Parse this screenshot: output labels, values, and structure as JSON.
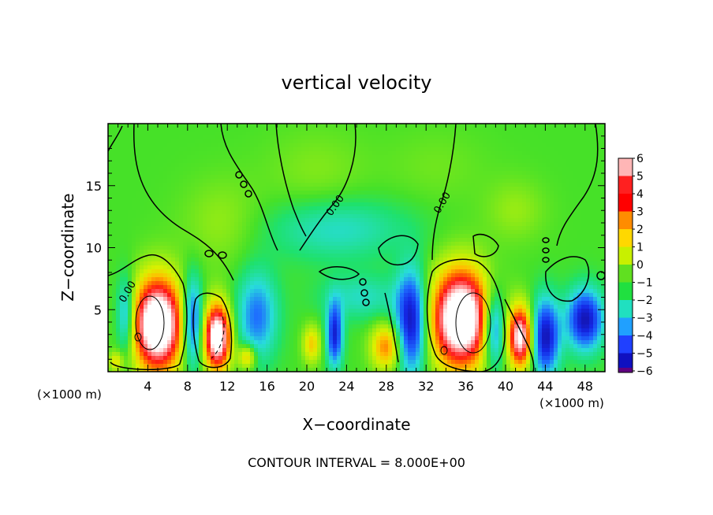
{
  "chart_data": {
    "type": "heatmap",
    "title": "vertical velocity",
    "xlabel": "X−coordinate",
    "ylabel": "Z−coordinate",
    "x_unit_label": "(×1000 m)",
    "xlim": [
      0,
      50
    ],
    "ylim": [
      0,
      20
    ],
    "x_ticks": [
      4,
      8,
      12,
      16,
      20,
      24,
      28,
      32,
      36,
      40,
      44,
      48
    ],
    "y_ticks": [
      5,
      10,
      15
    ],
    "contour_label": "0.00",
    "footer": "CONTOUR INTERVAL = 8.000E+00",
    "colorbar": {
      "range": [
        -6,
        6
      ],
      "levels": [
        6,
        5,
        4,
        3,
        2,
        1,
        0,
        -1,
        -2,
        -3,
        -4,
        -5,
        -6
      ],
      "level_labels": [
        "6",
        "5",
        "4",
        "3",
        "2",
        "1",
        "0",
        "−1",
        "−2",
        "−3",
        "−4",
        "−5",
        "−6"
      ],
      "colors": [
        "#ffb6b6",
        "#ff2020",
        "#ff0000",
        "#ff8c00",
        "#ffd800",
        "#c8f000",
        "#60e020",
        "#20e040",
        "#20e0c0",
        "#20a0ff",
        "#2040ff",
        "#1010c0",
        "#600080"
      ]
    },
    "features": [
      {
        "x": 5.0,
        "z": 3.8,
        "w": 9,
        "sx": 2.4,
        "sz": 3.6
      },
      {
        "x": 11.0,
        "z": 2.8,
        "w": 8,
        "sx": 1.3,
        "sz": 2.6
      },
      {
        "x": 35.5,
        "z": 4.3,
        "w": 9,
        "sx": 2.8,
        "sz": 3.8
      },
      {
        "x": 41.5,
        "z": 2.8,
        "w": 7,
        "sx": 1.2,
        "sz": 2.4
      },
      {
        "x": 28.0,
        "z": 2.0,
        "w": 3.5,
        "sx": 1.5,
        "sz": 1.8
      },
      {
        "x": 14.0,
        "z": 1.2,
        "w": 3,
        "sx": 0.9,
        "sz": 1.0
      },
      {
        "x": 20.5,
        "z": 2.2,
        "w": 2.5,
        "sx": 0.9,
        "sz": 1.5
      },
      {
        "x": 0.8,
        "z": 0.8,
        "w": 2,
        "sx": 0.7,
        "sz": 0.8
      },
      {
        "x": 8.5,
        "z": 4.0,
        "w": -4,
        "sx": 1.0,
        "sz": 3.5
      },
      {
        "x": 1.8,
        "z": 4.5,
        "w": -3,
        "sx": 0.9,
        "sz": 3.0
      },
      {
        "x": 15.0,
        "z": 4.5,
        "w": -3,
        "sx": 2.0,
        "sz": 3.5
      },
      {
        "x": 22.8,
        "z": 3.0,
        "w": -4.5,
        "sx": 0.8,
        "sz": 2.5
      },
      {
        "x": 30.5,
        "z": 4.0,
        "w": -5,
        "sx": 1.5,
        "sz": 4.0
      },
      {
        "x": 38.8,
        "z": 3.5,
        "w": -4,
        "sx": 1.1,
        "sz": 3.0
      },
      {
        "x": 44.0,
        "z": 2.8,
        "w": -5,
        "sx": 1.4,
        "sz": 3.0
      },
      {
        "x": 48.0,
        "z": 4.2,
        "w": -5,
        "sx": 1.8,
        "sz": 2.4
      },
      {
        "x": 25.5,
        "z": 6.0,
        "w": -1.5,
        "sx": 4.0,
        "sz": 1.8
      },
      {
        "x": 23.0,
        "z": 11.5,
        "w": -1.6,
        "sx": 7.0,
        "sz": 2.5
      },
      {
        "x": 21.0,
        "z": 16.0,
        "w": 0.6,
        "sx": 5.0,
        "sz": 3.5
      },
      {
        "x": 11.5,
        "z": 12.0,
        "w": 0.8,
        "sx": 4.0,
        "sz": 3.5
      },
      {
        "x": 41.0,
        "z": 13.0,
        "w": 0.8,
        "sx": 3.0,
        "sz": 2.5
      },
      {
        "x": 33.0,
        "z": 16.5,
        "w": 0.4,
        "sx": 5.0,
        "sz": 3.0
      }
    ]
  }
}
